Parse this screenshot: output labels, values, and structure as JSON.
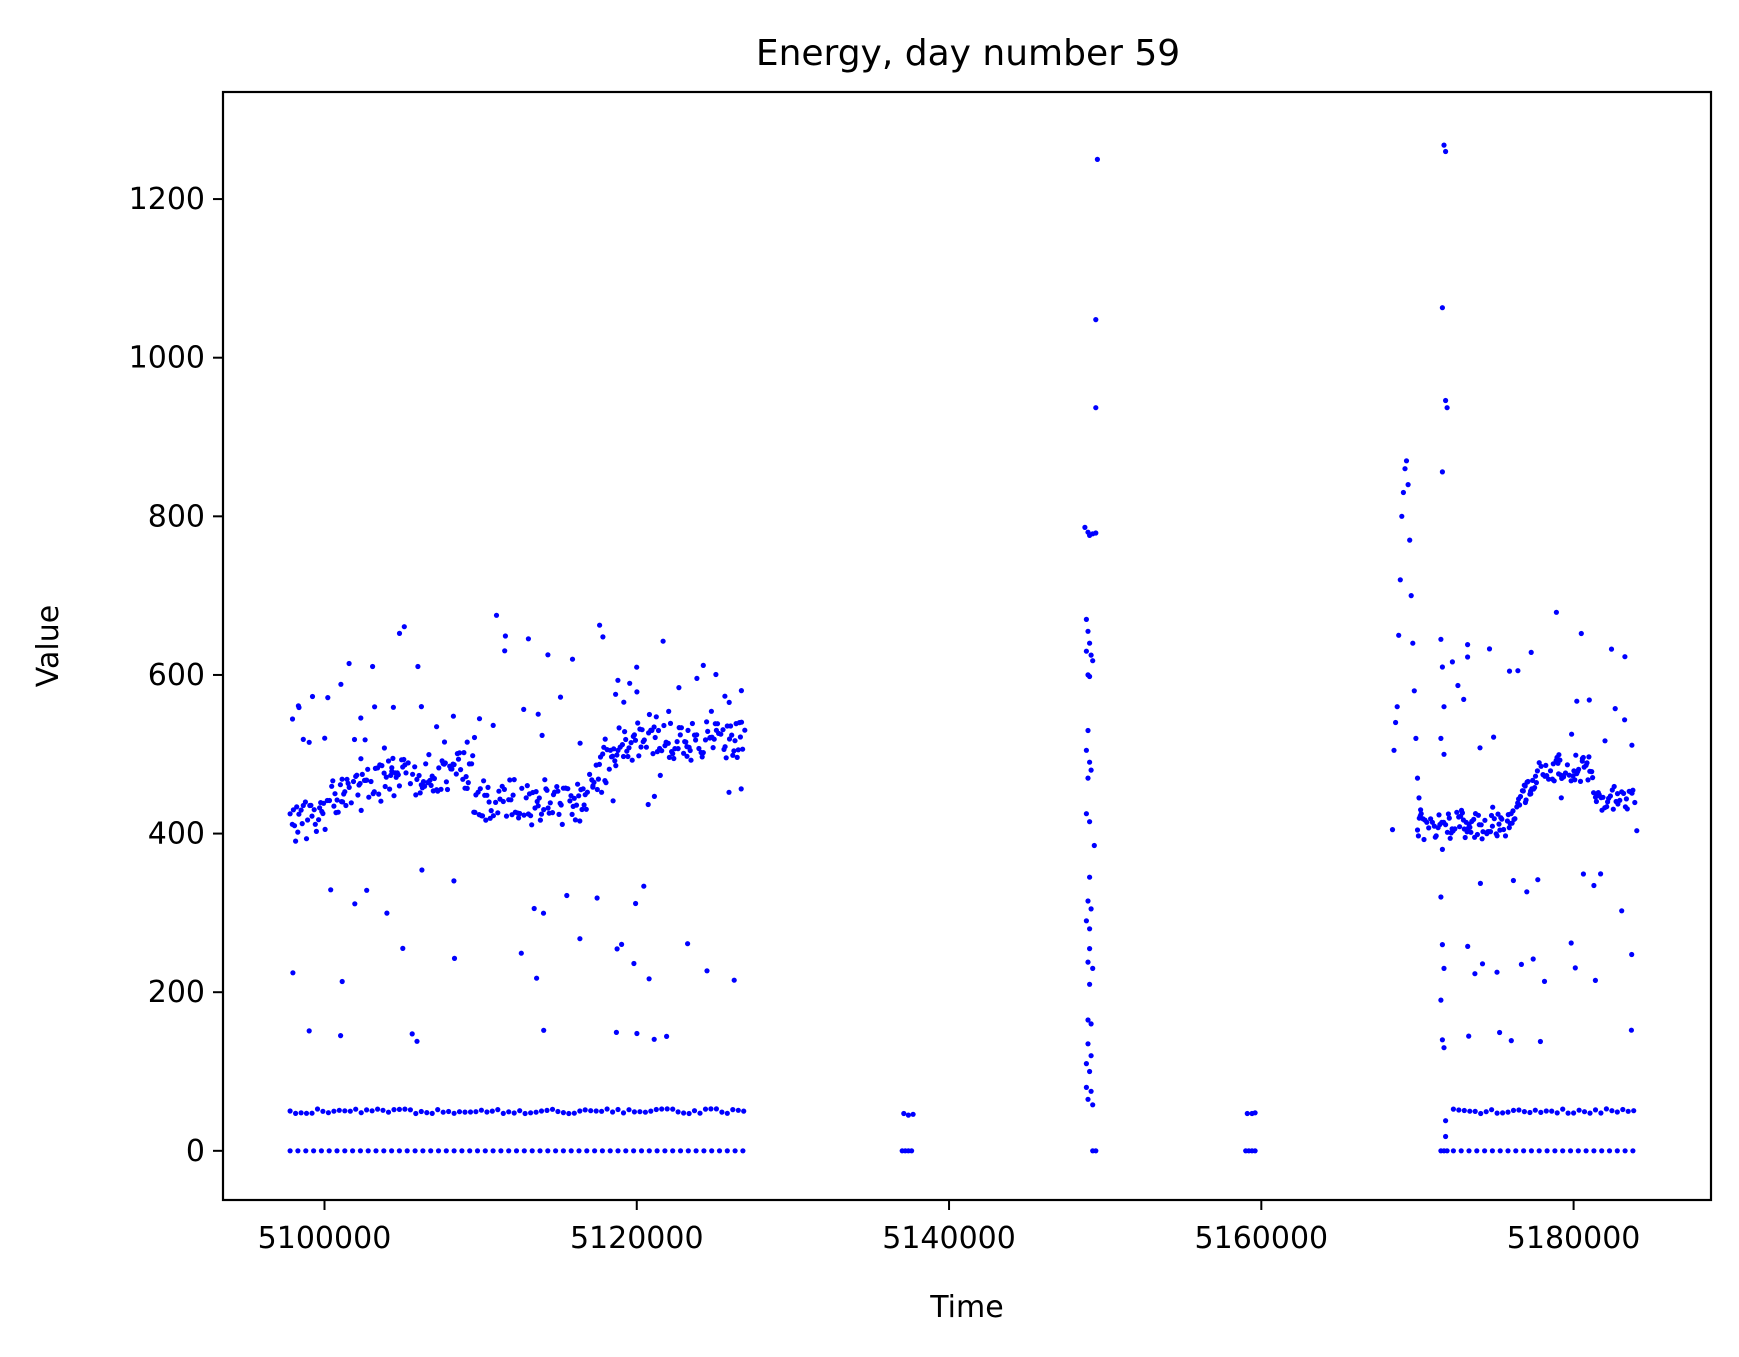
{
  "chart_data": {
    "type": "scatter",
    "title": "Energy, day number 59",
    "xlabel": "Time",
    "ylabel": "Value",
    "xlim": [
      5093500,
      5188800
    ],
    "ylim": [
      -62,
      1335
    ],
    "xticks": [
      5100000,
      5120000,
      5140000,
      5160000,
      5180000
    ],
    "yticks": [
      0,
      200,
      400,
      600,
      800,
      1000,
      1200
    ],
    "grid": false,
    "legend": "none",
    "marker_color": "#0000ff",
    "points": [
      [
        5137000,
        0
      ],
      [
        5137200,
        0
      ],
      [
        5137400,
        0
      ],
      [
        5137600,
        0
      ],
      [
        5137100,
        47
      ],
      [
        5137400,
        45
      ],
      [
        5137700,
        46
      ],
      [
        5159000,
        0
      ],
      [
        5159200,
        0
      ],
      [
        5159400,
        0
      ],
      [
        5159600,
        0
      ],
      [
        5159100,
        47
      ],
      [
        5159400,
        47
      ],
      [
        5159600,
        48
      ],
      [
        5149500,
        1250
      ],
      [
        5149400,
        1048
      ],
      [
        5149400,
        937
      ],
      [
        5148700,
        786
      ],
      [
        5148900,
        780
      ],
      [
        5149000,
        776
      ],
      [
        5149200,
        778
      ],
      [
        5149400,
        779
      ],
      [
        5148800,
        670
      ],
      [
        5148900,
        655
      ],
      [
        5149000,
        640
      ],
      [
        5148800,
        630
      ],
      [
        5149100,
        625
      ],
      [
        5149200,
        618
      ],
      [
        5148900,
        600
      ],
      [
        5149000,
        598
      ],
      [
        5148900,
        530
      ],
      [
        5148800,
        505
      ],
      [
        5149000,
        490
      ],
      [
        5148900,
        470
      ],
      [
        5149100,
        480
      ],
      [
        5148800,
        425
      ],
      [
        5149000,
        415
      ],
      [
        5149300,
        385
      ],
      [
        5149000,
        345
      ],
      [
        5148900,
        315
      ],
      [
        5149100,
        305
      ],
      [
        5148800,
        290
      ],
      [
        5149000,
        280
      ],
      [
        5149000,
        255
      ],
      [
        5148900,
        238
      ],
      [
        5149200,
        230
      ],
      [
        5149000,
        210
      ],
      [
        5148900,
        165
      ],
      [
        5149100,
        160
      ],
      [
        5148900,
        135
      ],
      [
        5149100,
        120
      ],
      [
        5148800,
        110
      ],
      [
        5149000,
        100
      ],
      [
        5148800,
        80
      ],
      [
        5149100,
        75
      ],
      [
        5148900,
        65
      ],
      [
        5149200,
        58
      ],
      [
        5149200,
        0
      ],
      [
        5149400,
        0
      ],
      [
        5168400,
        405
      ],
      [
        5168500,
        505
      ],
      [
        5168600,
        540
      ],
      [
        5168700,
        560
      ],
      [
        5168800,
        650
      ],
      [
        5168900,
        720
      ],
      [
        5169000,
        800
      ],
      [
        5169100,
        830
      ],
      [
        5169200,
        860
      ],
      [
        5169300,
        870
      ],
      [
        5169400,
        840
      ],
      [
        5169500,
        770
      ],
      [
        5169600,
        700
      ],
      [
        5169700,
        640
      ],
      [
        5169800,
        580
      ],
      [
        5169900,
        520
      ],
      [
        5170000,
        470
      ],
      [
        5170100,
        445
      ],
      [
        5170200,
        430
      ],
      [
        5171700,
        1268
      ],
      [
        5171800,
        1260
      ],
      [
        5171600,
        1063
      ],
      [
        5171800,
        946
      ],
      [
        5171900,
        937
      ],
      [
        5171600,
        856
      ],
      [
        5171500,
        645
      ],
      [
        5171600,
        610
      ],
      [
        5171700,
        560
      ],
      [
        5171500,
        520
      ],
      [
        5171700,
        500
      ],
      [
        5171600,
        380
      ],
      [
        5171500,
        320
      ],
      [
        5171600,
        260
      ],
      [
        5171700,
        230
      ],
      [
        5171500,
        190
      ],
      [
        5171600,
        140
      ],
      [
        5171700,
        130
      ],
      [
        5171800,
        38
      ],
      [
        5171800,
        18
      ],
      [
        5171500,
        0
      ],
      [
        5171700,
        0
      ],
      [
        5171900,
        0
      ]
    ]
  }
}
